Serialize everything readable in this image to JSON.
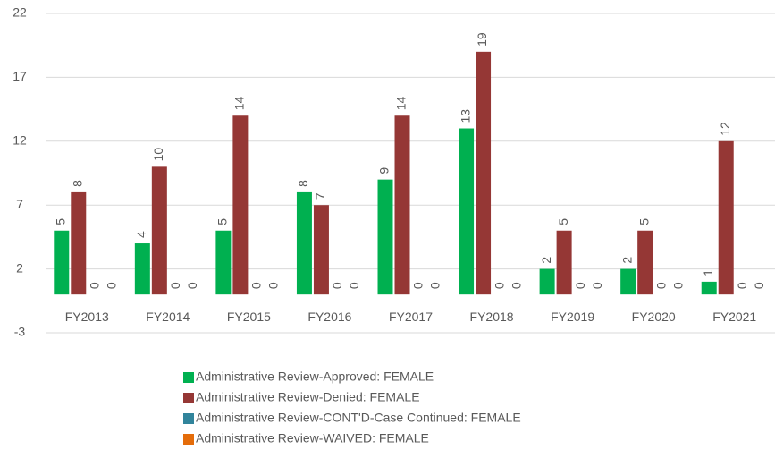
{
  "chart_data": {
    "type": "bar",
    "categories": [
      "FY2013",
      "FY2014",
      "FY2015",
      "FY2016",
      "FY2017",
      "FY2018",
      "FY2019",
      "FY2020",
      "FY2021"
    ],
    "series": [
      {
        "name": "Administrative Review-Approved: FEMALE",
        "color": "#00b050",
        "values": [
          5,
          4,
          5,
          8,
          9,
          13,
          2,
          2,
          1
        ]
      },
      {
        "name": "Administrative Review-Denied: FEMALE",
        "color": "#953735",
        "values": [
          8,
          10,
          14,
          7,
          14,
          19,
          5,
          5,
          12
        ]
      },
      {
        "name": "Administrative Review-CONT'D-Case Continued: FEMALE",
        "color": "#31849b",
        "values": [
          0,
          0,
          0,
          0,
          0,
          0,
          0,
          0,
          0
        ]
      },
      {
        "name": "Administrative Review-WAIVED: FEMALE",
        "color": "#e46c0a",
        "values": [
          0,
          0,
          0,
          0,
          0,
          0,
          0,
          0,
          0
        ]
      }
    ],
    "ylim": [
      -3,
      22
    ],
    "yticks": [
      -3,
      2,
      7,
      12,
      17,
      22
    ],
    "grid": true,
    "data_labels": true,
    "legend": "bottom"
  }
}
